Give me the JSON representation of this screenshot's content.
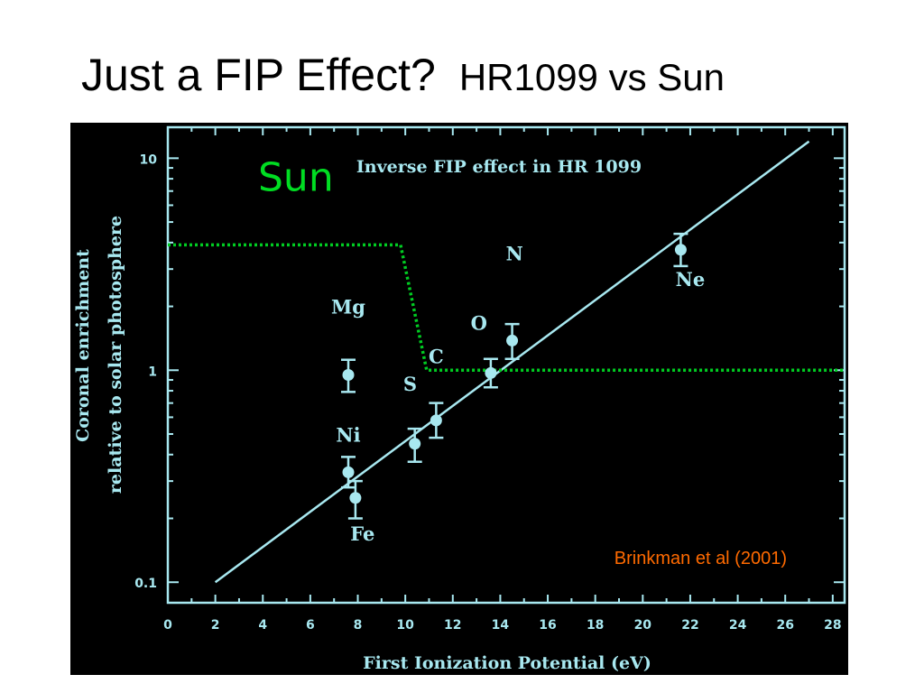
{
  "slide": {
    "title": "Just a FIP Effect?",
    "subtitle": "HR1099 vs Sun"
  },
  "colors": {
    "panel_bg": "#000000",
    "axis_frame": "#a8e8f0",
    "fit_line": "#a8e8f0",
    "data_points": "#a8e8f0",
    "sun_curve": "#00cc22",
    "sun_label": "#00dd22",
    "citation": "#ff6a00"
  },
  "chart_data": {
    "type": "scatter",
    "title": "Inverse FIP effect in HR 1099",
    "xlabel": "First Ionization Potential (eV)",
    "ylabel_line1": "Coronal enrichment",
    "ylabel_line2": "relative to solar photosphere",
    "xlim": [
      0,
      28.5
    ],
    "ylim": [
      0.08,
      14
    ],
    "yscale": "log",
    "x_ticks": [
      0,
      2,
      4,
      6,
      8,
      10,
      12,
      14,
      16,
      18,
      20,
      22,
      24,
      26,
      28
    ],
    "y_ticks": [
      {
        "value": 0.1,
        "label": "0.1"
      },
      {
        "value": 1,
        "label": "1"
      },
      {
        "value": 10,
        "label": "10"
      }
    ],
    "points": [
      {
        "element": "Mg",
        "x": 7.6,
        "y": 0.95,
        "ylow": 0.79,
        "yhigh": 1.12,
        "label_x": 7.6,
        "label_y": 1.85
      },
      {
        "element": "Ni",
        "x": 7.6,
        "y": 0.33,
        "ylow": 0.28,
        "yhigh": 0.39,
        "label_x": 7.6,
        "label_y": 0.46
      },
      {
        "element": "Fe",
        "x": 7.9,
        "y": 0.25,
        "ylow": 0.2,
        "yhigh": 0.3,
        "label_x": 8.2,
        "label_y": 0.157
      },
      {
        "element": "S",
        "x": 10.4,
        "y": 0.45,
        "ylow": 0.37,
        "yhigh": 0.53,
        "label_x": 10.2,
        "label_y": 0.8
      },
      {
        "element": "C",
        "x": 11.3,
        "y": 0.58,
        "ylow": 0.48,
        "yhigh": 0.7,
        "label_x": 11.3,
        "label_y": 1.08
      },
      {
        "element": "O",
        "x": 13.6,
        "y": 0.97,
        "ylow": 0.83,
        "yhigh": 1.13,
        "label_x": 13.1,
        "label_y": 1.55
      },
      {
        "element": "N",
        "x": 14.5,
        "y": 1.38,
        "ylow": 1.13,
        "yhigh": 1.65,
        "label_x": 14.6,
        "label_y": 3.3
      },
      {
        "element": "Ne",
        "x": 21.6,
        "y": 3.7,
        "ylow": 3.1,
        "yhigh": 4.4,
        "label_x": 22.0,
        "label_y": 2.5
      }
    ],
    "fit_line": [
      [
        2.0,
        0.1
      ],
      [
        27.0,
        12.0
      ]
    ],
    "sun_curve": {
      "label": "Sun",
      "label_x": 3.8,
      "label_y": 7.0,
      "points": [
        [
          0,
          3.9
        ],
        [
          9.8,
          3.9
        ],
        [
          10.9,
          1.0
        ],
        [
          28.5,
          1.0
        ]
      ]
    },
    "citation": "Brinkman et al (2001)"
  }
}
